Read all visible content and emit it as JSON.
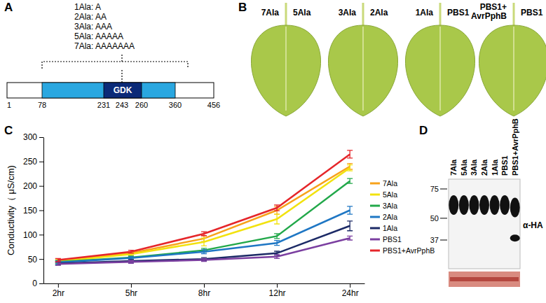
{
  "panel_labels": [
    "A",
    "B",
    "C",
    "D"
  ],
  "panel_a": {
    "insertions": [
      "1Ala: A",
      "2Ala: AA",
      "3Ala: AAA",
      "5Ala: AAAAA",
      "7Ala: AAAAAAA"
    ],
    "domain_label": "GDK",
    "positions": [
      1,
      78,
      231,
      243,
      260,
      360,
      456
    ]
  },
  "panel_b": {
    "leaves": [
      {
        "left": [
          "7Ala"
        ],
        "right": [
          "5Ala"
        ]
      },
      {
        "left": [
          "3Ala"
        ],
        "right": [
          "2Ala"
        ]
      },
      {
        "left": [
          "1Ala"
        ],
        "right": [
          "PBS1"
        ]
      },
      {
        "left": [
          "PBS1+",
          "AvrPphB"
        ],
        "right": [
          "PBS1"
        ]
      }
    ]
  },
  "chart_data": {
    "type": "line",
    "y_label": "Conductivity（ μS/cm)",
    "categories": [
      "2hr",
      "5hr",
      "8hr",
      "12hr",
      "24hr"
    ],
    "series": [
      {
        "name": "7Ala",
        "color": "#f7a21b",
        "values": [
          47,
          62,
          92,
          150,
          240
        ],
        "errors": [
          3,
          3,
          6,
          8,
          6
        ]
      },
      {
        "name": "5Ala",
        "color": "#f2e20f",
        "values": [
          45,
          60,
          85,
          132,
          237
        ],
        "errors": [
          3,
          3,
          8,
          10,
          6
        ]
      },
      {
        "name": "3Ala",
        "color": "#22a84a",
        "values": [
          44,
          53,
          68,
          97,
          210
        ],
        "errors": [
          3,
          3,
          4,
          5,
          5
        ]
      },
      {
        "name": "2Ala",
        "color": "#1f77c4",
        "values": [
          43,
          52,
          65,
          83,
          150
        ],
        "errors": [
          3,
          3,
          4,
          5,
          8
        ]
      },
      {
        "name": "1Ala",
        "color": "#1c2a66",
        "values": [
          41,
          46,
          50,
          62,
          118
        ],
        "errors": [
          3,
          3,
          3,
          4,
          10
        ]
      },
      {
        "name": "PBS1",
        "color": "#7b3fa0",
        "values": [
          40,
          44,
          48,
          55,
          93
        ],
        "errors": [
          3,
          3,
          3,
          4,
          4
        ]
      },
      {
        "name": "PBS1+AvrPphB",
        "color": "#e5262a",
        "values": [
          48,
          65,
          102,
          155,
          265
        ],
        "errors": [
          3,
          3,
          4,
          6,
          8
        ]
      }
    ],
    "ylim": [
      0,
      300
    ],
    "yticks": [
      0,
      50,
      100,
      150,
      200,
      250,
      300
    ],
    "legend": "right",
    "grid": false
  },
  "panel_d": {
    "lanes": [
      {
        "label": "7Ala",
        "bands": [
          60
        ]
      },
      {
        "label": "5Ala",
        "bands": [
          60
        ]
      },
      {
        "label": "3Ala",
        "bands": [
          60
        ]
      },
      {
        "label": "2Ala",
        "bands": [
          60
        ]
      },
      {
        "label": "1Ala",
        "bands": [
          60
        ]
      },
      {
        "label": "PBS1",
        "bands": [
          60
        ]
      },
      {
        "label": "PBS1+AvrPphB",
        "bands": [
          58,
          38
        ]
      }
    ],
    "markers": [
      75,
      50,
      37
    ],
    "antibody": "α-HA"
  }
}
